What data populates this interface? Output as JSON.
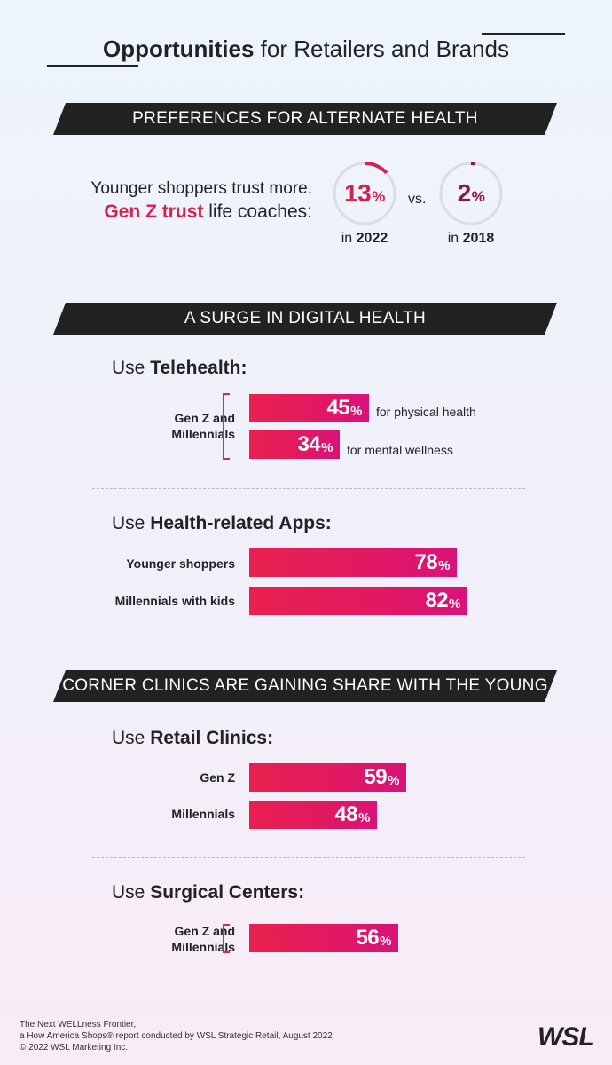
{
  "title": {
    "bold": "Opportunities",
    "rest": " for Retailers and Brands"
  },
  "section1": {
    "banner": "PREFERENCES FOR ALTERNATE HEALTH",
    "line1": "Younger shoppers trust more.",
    "line2_bold": "Gen Z trust",
    "line2_rest": " life coaches:",
    "vs": "vs.",
    "stat_2022": {
      "value": 13,
      "text": "13",
      "pct": "%",
      "prefix": "in ",
      "year": "2022",
      "color": "#d6204e"
    },
    "stat_2018": {
      "value": 2,
      "text": "2",
      "pct": "%",
      "prefix": "in ",
      "year": "2018",
      "color": "#8b1545"
    }
  },
  "section2": {
    "banner": "A SURGE IN DIGITAL HEALTH",
    "telehealth": {
      "prefix": "Use ",
      "bold": "Telehealth:",
      "group_label_1": "Gen Z and",
      "group_label_2": "Millennials",
      "rows": [
        {
          "value": 45,
          "text": "45",
          "pct": "%",
          "note": "for physical health"
        },
        {
          "value": 34,
          "text": "34",
          "pct": "%",
          "note": "for mental wellness"
        }
      ]
    },
    "apps": {
      "prefix": "Use ",
      "bold": "Health-related Apps:",
      "rows": [
        {
          "label": "Younger shoppers",
          "value": 78,
          "text": "78",
          "pct": "%"
        },
        {
          "label": "Millennials with kids",
          "value": 82,
          "text": "82",
          "pct": "%"
        }
      ]
    }
  },
  "section3": {
    "banner": "CORNER CLINICS ARE GAINING SHARE WITH THE YOUNG",
    "retail": {
      "prefix": "Use ",
      "bold": "Retail Clinics:",
      "rows": [
        {
          "label": "Gen Z",
          "value": 59,
          "text": "59",
          "pct": "%"
        },
        {
          "label": "Millennials",
          "value": 48,
          "text": "48",
          "pct": "%"
        }
      ]
    },
    "surgical": {
      "prefix": "Use ",
      "bold": "Surgical Centers:",
      "group_label_1": "Gen Z and",
      "group_label_2": "Millennials",
      "rows": [
        {
          "value": 56,
          "text": "56",
          "pct": "%"
        }
      ]
    }
  },
  "footer": {
    "line1": "The Next WELLness Frontier,",
    "line2": "a How America Shops® report conducted by WSL Strategic Retail, August 2022",
    "line3": "© 2022 WSL Marketing Inc.",
    "logo": "WSL"
  },
  "chart_data": [
    {
      "type": "pie",
      "title": "Gen Z trust life coaches",
      "categories": [
        "2022",
        "2018"
      ],
      "values": [
        13,
        2
      ]
    },
    {
      "type": "bar",
      "title": "Use Telehealth",
      "categories": [
        "for physical health",
        "for mental wellness"
      ],
      "values": [
        45,
        34
      ]
    },
    {
      "type": "bar",
      "title": "Use Health-related Apps",
      "categories": [
        "Younger shoppers",
        "Millennials with kids"
      ],
      "values": [
        78,
        82
      ]
    },
    {
      "type": "bar",
      "title": "Use Retail Clinics",
      "categories": [
        "Gen Z",
        "Millennials"
      ],
      "values": [
        59,
        48
      ]
    },
    {
      "type": "bar",
      "title": "Use Surgical Centers",
      "categories": [
        "Gen Z and Millennials"
      ],
      "values": [
        56
      ]
    }
  ]
}
